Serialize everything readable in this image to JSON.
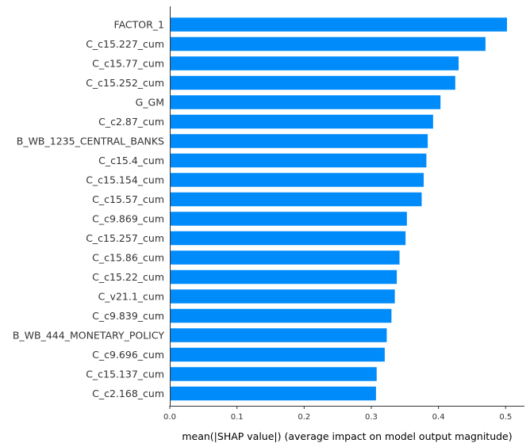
{
  "chart_data": {
    "type": "bar",
    "orientation": "horizontal",
    "title": "",
    "xlabel": "mean(|SHAP value|) (average impact on model output magnitude)",
    "ylabel": "",
    "xlim": [
      0,
      0.528
    ],
    "x_ticks": [
      0.0,
      0.1,
      0.2,
      0.3,
      0.4,
      0.5
    ],
    "x_tick_labels": [
      "0.0",
      "0.1",
      "0.2",
      "0.3",
      "0.4",
      "0.5"
    ],
    "grid": false,
    "bar_color": "#008bfb",
    "categories": [
      "FACTOR_1",
      "C_c15.227_cum",
      "C_c15.77_cum",
      "C_c15.252_cum",
      "G_GM",
      "C_c2.87_cum",
      "B_WB_1235_CENTRAL_BANKS",
      "C_c15.4_cum",
      "C_c15.154_cum",
      "C_c15.57_cum",
      "C_c9.869_cum",
      "C_c15.257_cum",
      "C_c15.86_cum",
      "C_c15.22_cum",
      "C_v21.1_cum",
      "C_c9.839_cum",
      "B_WB_444_MONETARY_POLICY",
      "C_c9.696_cum",
      "C_c15.137_cum",
      "C_c2.168_cum"
    ],
    "values": [
      0.502,
      0.47,
      0.43,
      0.425,
      0.403,
      0.392,
      0.384,
      0.382,
      0.378,
      0.375,
      0.353,
      0.351,
      0.342,
      0.338,
      0.335,
      0.33,
      0.323,
      0.32,
      0.308,
      0.307
    ]
  }
}
